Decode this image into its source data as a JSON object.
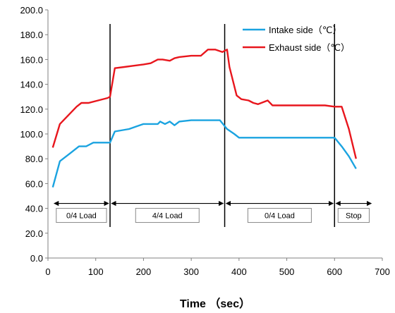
{
  "chart_data": {
    "type": "line",
    "title": "",
    "xlabel": "Time （sec）",
    "ylabel": "",
    "xlim": [
      0,
      700
    ],
    "ylim": [
      0,
      200
    ],
    "x_ticks": [
      "0",
      "100",
      "200",
      "300",
      "400",
      "500",
      "600",
      "700"
    ],
    "y_ticks": [
      "0.0",
      "20.0",
      "40.0",
      "60.0",
      "80.0",
      "100.0",
      "120.0",
      "140.0",
      "160.0",
      "180.0",
      "200.0"
    ],
    "grid": false,
    "legend_position": "top-right",
    "series": [
      {
        "name": "Intake side（℃）",
        "color": "#1aa3e0",
        "points": [
          [
            10,
            57
          ],
          [
            25,
            78
          ],
          [
            45,
            84
          ],
          [
            65,
            90
          ],
          [
            80,
            90
          ],
          [
            95,
            93
          ],
          [
            110,
            93
          ],
          [
            130,
            93
          ],
          [
            140,
            102
          ],
          [
            170,
            104
          ],
          [
            185,
            106
          ],
          [
            200,
            108
          ],
          [
            230,
            108
          ],
          [
            235,
            110
          ],
          [
            245,
            108
          ],
          [
            255,
            110
          ],
          [
            265,
            107
          ],
          [
            275,
            110
          ],
          [
            300,
            111
          ],
          [
            340,
            111
          ],
          [
            360,
            111
          ],
          [
            375,
            104
          ],
          [
            390,
            100
          ],
          [
            400,
            97
          ],
          [
            420,
            97
          ],
          [
            450,
            97
          ],
          [
            500,
            97
          ],
          [
            550,
            97
          ],
          [
            590,
            97
          ],
          [
            600,
            97
          ],
          [
            615,
            90
          ],
          [
            630,
            82
          ],
          [
            645,
            72
          ]
        ]
      },
      {
        "name": "Exhaust side（℃）",
        "color": "#e8161d",
        "points": [
          [
            10,
            89
          ],
          [
            25,
            108
          ],
          [
            45,
            116
          ],
          [
            60,
            122
          ],
          [
            70,
            125
          ],
          [
            85,
            125
          ],
          [
            105,
            127
          ],
          [
            125,
            129
          ],
          [
            130,
            130
          ],
          [
            140,
            153
          ],
          [
            160,
            154
          ],
          [
            180,
            155
          ],
          [
            200,
            156
          ],
          [
            215,
            157
          ],
          [
            230,
            160
          ],
          [
            240,
            160
          ],
          [
            255,
            159
          ],
          [
            265,
            161
          ],
          [
            275,
            162
          ],
          [
            300,
            163
          ],
          [
            320,
            163
          ],
          [
            335,
            168
          ],
          [
            350,
            168
          ],
          [
            365,
            166
          ],
          [
            375,
            168
          ],
          [
            380,
            154
          ],
          [
            395,
            131
          ],
          [
            405,
            128
          ],
          [
            420,
            127
          ],
          [
            430,
            125
          ],
          [
            440,
            124
          ],
          [
            460,
            127
          ],
          [
            470,
            123
          ],
          [
            490,
            123
          ],
          [
            530,
            123
          ],
          [
            560,
            123
          ],
          [
            580,
            123
          ],
          [
            600,
            122
          ],
          [
            615,
            122
          ],
          [
            630,
            104
          ],
          [
            645,
            80
          ]
        ]
      }
    ],
    "phase_dividers": [
      130,
      370,
      600
    ],
    "phases": [
      {
        "label": "0/4 Load",
        "from": 10,
        "to": 130
      },
      {
        "label": "4/4 Load",
        "from": 130,
        "to": 370
      },
      {
        "label": "0/4 Load",
        "from": 370,
        "to": 600
      },
      {
        "label": "Stop",
        "from": 600,
        "to": 680
      }
    ],
    "phase_arrow_y": 44
  }
}
